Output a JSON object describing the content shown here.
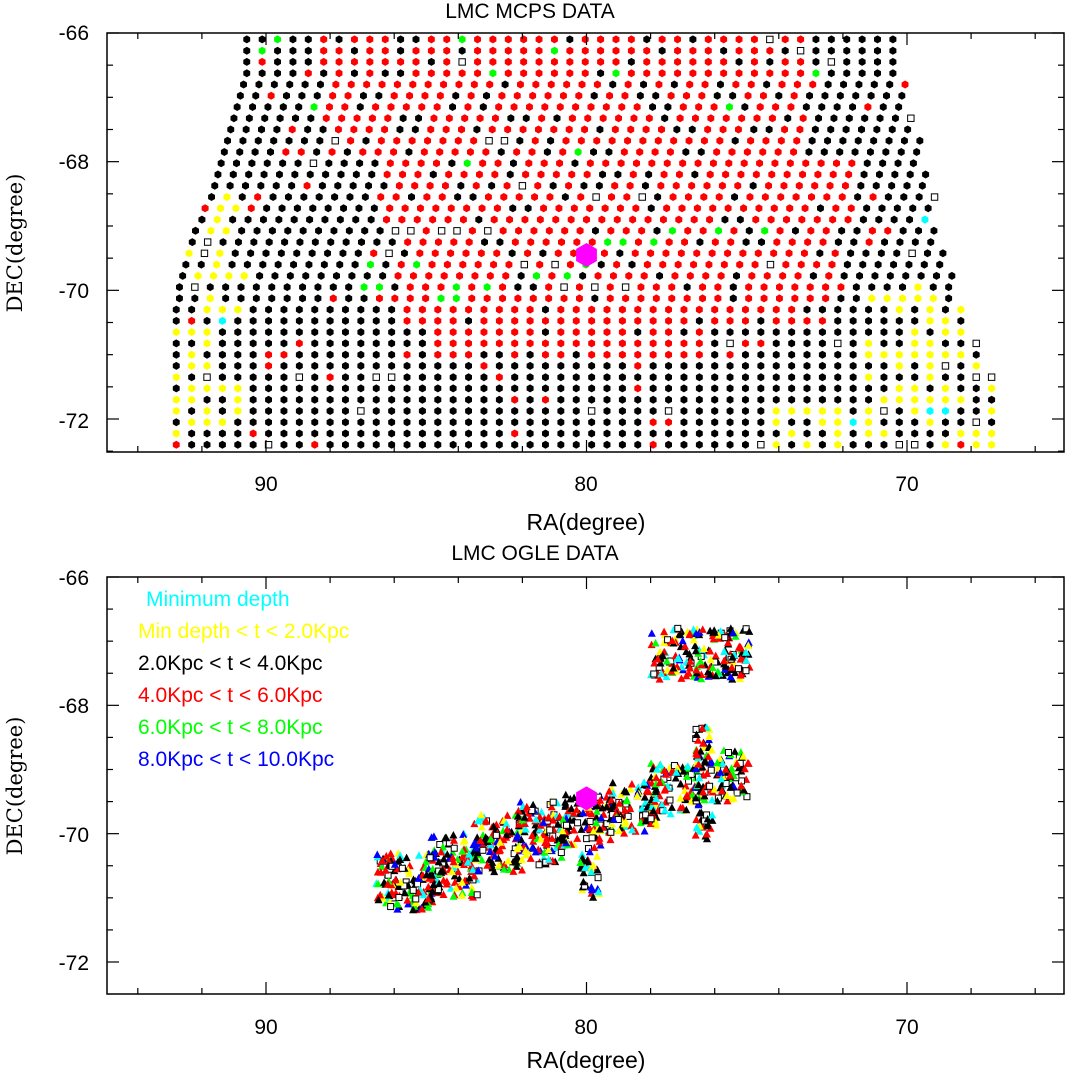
{
  "chart_data": [
    {
      "type": "scatter",
      "title": "LMC MCPS DATA",
      "xlabel": "RA(degree)",
      "ylabel": "DEC(degree)",
      "xlim": [
        95,
        65
      ],
      "ylim": [
        -72.5,
        -66
      ],
      "xticks": [
        "90",
        "80",
        "70"
      ],
      "yticks": [
        "-66",
        "-68",
        "-70",
        "-72"
      ],
      "grid": false,
      "dec_rows_from": -66.1,
      "dec_row_step": -0.175,
      "ra_step": 0.48,
      "rows": [
        {
          "ra_max": 90.6,
          "ra_min": 70.3
        },
        {
          "ra_max": 90.6,
          "ra_min": 70.3
        },
        {
          "ra_max": 90.6,
          "ra_min": 70.1
        },
        {
          "ra_max": 90.6,
          "ra_min": 70.1
        },
        {
          "ra_max": 90.7,
          "ra_min": 70.0
        },
        {
          "ra_max": 90.8,
          "ra_min": 69.9
        },
        {
          "ra_max": 90.9,
          "ra_min": 69.9
        },
        {
          "ra_max": 91.0,
          "ra_min": 69.8
        },
        {
          "ra_max": 91.1,
          "ra_min": 69.7
        },
        {
          "ra_max": 91.2,
          "ra_min": 69.6
        },
        {
          "ra_max": 91.3,
          "ra_min": 69.5
        },
        {
          "ra_max": 91.4,
          "ra_min": 69.4
        },
        {
          "ra_max": 91.5,
          "ra_min": 69.3
        },
        {
          "ra_max": 91.6,
          "ra_min": 69.2
        },
        {
          "ra_max": 91.7,
          "ra_min": 69.1
        },
        {
          "ra_max": 91.9,
          "ra_min": 69.0
        },
        {
          "ra_max": 92.0,
          "ra_min": 69.0
        },
        {
          "ra_max": 92.2,
          "ra_min": 68.9
        },
        {
          "ra_max": 92.3,
          "ra_min": 68.8
        },
        {
          "ra_max": 92.4,
          "ra_min": 68.7
        },
        {
          "ra_max": 92.5,
          "ra_min": 68.6
        },
        {
          "ra_max": 92.6,
          "ra_min": 68.5
        },
        {
          "ra_max": 92.7,
          "ra_min": 68.4
        },
        {
          "ra_max": 92.7,
          "ra_min": 68.3
        },
        {
          "ra_max": 92.8,
          "ra_min": 68.2
        },
        {
          "ra_max": 92.8,
          "ra_min": 68.0
        },
        {
          "ra_max": 92.8,
          "ra_min": 67.9
        },
        {
          "ra_max": 92.8,
          "ra_min": 67.8
        },
        {
          "ra_max": 92.8,
          "ra_min": 67.6
        },
        {
          "ra_max": 92.8,
          "ra_min": 67.5
        },
        {
          "ra_max": 92.8,
          "ra_min": 67.3
        },
        {
          "ra_max": 92.8,
          "ra_min": 67.2
        },
        {
          "ra_max": 92.8,
          "ra_min": 67.1
        },
        {
          "ra_max": 92.8,
          "ra_min": 67.0
        },
        {
          "ra_max": 92.8,
          "ra_min": 67.0
        },
        {
          "ra_max": 92.8,
          "ra_min": 67.0
        },
        {
          "ra_max": 92.8,
          "ra_min": 67.0
        }
      ],
      "regions": [
        {
          "depth_class": "red",
          "ra": [
            88.2,
            73.2
          ],
          "dec": [
            -66.0,
            -67.9
          ]
        },
        {
          "depth_class": "red",
          "ra": [
            86.5,
            71.7
          ],
          "dec": [
            -67.9,
            -69.0
          ]
        },
        {
          "depth_class": "red",
          "ra": [
            86.0,
            72.2
          ],
          "dec": [
            -69.0,
            -70.5
          ]
        },
        {
          "depth_class": "red",
          "ra": [
            85.0,
            76.0
          ],
          "dec": [
            -70.5,
            -71.0
          ]
        },
        {
          "depth_class": "yellow",
          "ra": [
            92.8,
            90.6
          ],
          "dec": [
            -68.4,
            -72.5
          ]
        },
        {
          "depth_class": "yellow",
          "ra": [
            71.3,
            67.0
          ],
          "dec": [
            -69.9,
            -72.5
          ]
        },
        {
          "depth_class": "yellow",
          "ra": [
            74.5,
            67.0
          ],
          "dec": [
            -71.8,
            -72.5
          ]
        }
      ],
      "special_points": [
        {
          "ra": 89.5,
          "dec": -66.1,
          "depth_class": "green"
        },
        {
          "ra": 90.0,
          "dec": -66.3,
          "depth_class": "green"
        },
        {
          "ra": 84.0,
          "dec": -66.1,
          "depth_class": "green"
        },
        {
          "ra": 83.0,
          "dec": -66.6,
          "depth_class": "green"
        },
        {
          "ra": 81.0,
          "dec": -66.3,
          "depth_class": "green"
        },
        {
          "ra": 79.2,
          "dec": -66.6,
          "depth_class": "green"
        },
        {
          "ra": 75.5,
          "dec": -67.2,
          "depth_class": "green"
        },
        {
          "ra": 73.0,
          "dec": -66.6,
          "depth_class": "green"
        },
        {
          "ra": 88.7,
          "dec": -67.2,
          "depth_class": "green"
        },
        {
          "ra": 80.2,
          "dec": -67.9,
          "depth_class": "green"
        },
        {
          "ra": 83.9,
          "dec": -68.1,
          "depth_class": "green"
        },
        {
          "ra": 79.5,
          "dec": -69.3,
          "depth_class": "green"
        },
        {
          "ra": 78.8,
          "dec": -69.3,
          "depth_class": "green"
        },
        {
          "ra": 78.1,
          "dec": -69.3,
          "depth_class": "green"
        },
        {
          "ra": 77.2,
          "dec": -69.1,
          "depth_class": "green"
        },
        {
          "ra": 75.8,
          "dec": -69.1,
          "depth_class": "green"
        },
        {
          "ra": 74.5,
          "dec": -69.1,
          "depth_class": "green"
        },
        {
          "ra": 80.8,
          "dec": -69.7,
          "depth_class": "green"
        },
        {
          "ra": 81.5,
          "dec": -69.8,
          "depth_class": "green"
        },
        {
          "ra": 83.0,
          "dec": -69.9,
          "depth_class": "green"
        },
        {
          "ra": 84.2,
          "dec": -70.0,
          "depth_class": "green"
        },
        {
          "ra": 84.5,
          "dec": -70.1,
          "depth_class": "green"
        },
        {
          "ra": 86.7,
          "dec": -69.6,
          "depth_class": "green"
        },
        {
          "ra": 86.7,
          "dec": -69.9,
          "depth_class": "green"
        },
        {
          "ra": 85.2,
          "dec": -69.6,
          "depth_class": "green"
        },
        {
          "ra": 84.3,
          "dec": -70.1,
          "depth_class": "green"
        },
        {
          "ra": 79.8,
          "dec": -69.6,
          "depth_class": "green"
        },
        {
          "ra": 69.2,
          "dec": -68.9,
          "depth_class": "cyan"
        },
        {
          "ra": 91.3,
          "dec": -70.4,
          "depth_class": "cyan"
        },
        {
          "ra": 69.1,
          "dec": -71.9,
          "depth_class": "cyan"
        },
        {
          "ra": 68.7,
          "dec": -71.9,
          "depth_class": "cyan"
        },
        {
          "ra": 71.9,
          "dec": -72.1,
          "depth_class": "cyan"
        },
        {
          "ra": 70.3,
          "dec": -72.4,
          "depth_class": "cyan"
        },
        {
          "ra": 68.5,
          "dec": -72.4,
          "depth_class": "red"
        },
        {
          "ra": 92.8,
          "dec": -72.4,
          "depth_class": "red"
        },
        {
          "ra": 92.4,
          "dec": -70.4,
          "depth_class": "red"
        },
        {
          "ra": 91.9,
          "dec": -68.8,
          "depth_class": "red"
        },
        {
          "ra": 89.8,
          "dec": -71.1,
          "depth_class": "red"
        },
        {
          "ra": 88.3,
          "dec": -72.4,
          "depth_class": "red"
        },
        {
          "ra": 68.9,
          "dec": -71.1,
          "depth_class": "red"
        },
        {
          "ra": 74.8,
          "dec": -70.9,
          "depth_class": "red"
        },
        {
          "ra": 77.9,
          "dec": -72.1,
          "depth_class": "red"
        }
      ],
      "open_squares": [
        {
          "ra": 84.0,
          "dec": -66.4
        },
        {
          "ra": 74.2,
          "dec": -66.1
        },
        {
          "ra": 73.2,
          "dec": -66.3
        },
        {
          "ra": 72.4,
          "dec": -66.4
        },
        {
          "ra": 87.8,
          "dec": -67.6
        },
        {
          "ra": 82.8,
          "dec": -67.6
        },
        {
          "ra": 70.0,
          "dec": -67.4
        },
        {
          "ra": 88.7,
          "dec": -68.1
        },
        {
          "ra": 82.1,
          "dec": -68.4
        },
        {
          "ra": 79.8,
          "dec": -68.6
        },
        {
          "ra": 78.1,
          "dec": -68.6
        },
        {
          "ra": 68.9,
          "dec": -68.4
        },
        {
          "ra": 68.9,
          "dec": -68.6
        },
        {
          "ra": 92.0,
          "dec": -69.2
        },
        {
          "ra": 92.0,
          "dec": -69.4
        },
        {
          "ra": 86.0,
          "dec": -69.1
        },
        {
          "ra": 85.3,
          "dec": -69.1
        },
        {
          "ra": 84.5,
          "dec": -69.1
        },
        {
          "ra": 83.9,
          "dec": -69.1
        },
        {
          "ra": 83.0,
          "dec": -69.1
        },
        {
          "ra": 86.2,
          "dec": -69.4
        },
        {
          "ra": 82.1,
          "dec": -69.6
        },
        {
          "ra": 81.2,
          "dec": -69.6
        },
        {
          "ra": 80.7,
          "dec": -69.9
        },
        {
          "ra": 79.9,
          "dec": -69.9
        },
        {
          "ra": 78.9,
          "dec": -69.9
        },
        {
          "ra": 74.4,
          "dec": -69.6
        },
        {
          "ra": 69.8,
          "dec": -69.4
        },
        {
          "ra": 93.1,
          "dec": -69.9
        },
        {
          "ra": 93.2,
          "dec": -70.1
        },
        {
          "ra": 92.2,
          "dec": -69.9
        },
        {
          "ra": 75.4,
          "dec": -70.9
        },
        {
          "ra": 72.3,
          "dec": -70.9
        },
        {
          "ra": 69.0,
          "dec": -71.1
        },
        {
          "ra": 68.0,
          "dec": -70.6
        },
        {
          "ra": 67.8,
          "dec": -70.9
        },
        {
          "ra": 68.0,
          "dec": -71.4
        },
        {
          "ra": 91.7,
          "dec": -71.4
        },
        {
          "ra": 89.0,
          "dec": -71.4
        },
        {
          "ra": 86.6,
          "dec": -71.4
        },
        {
          "ra": 86.0,
          "dec": -71.4
        },
        {
          "ra": 79.9,
          "dec": -71.9
        },
        {
          "ra": 77.3,
          "dec": -71.9
        },
        {
          "ra": 70.9,
          "dec": -71.9
        },
        {
          "ra": 67.4,
          "dec": -71.4
        },
        {
          "ra": 67.8,
          "dec": -72.1
        },
        {
          "ra": 74.5,
          "dec": -72.4
        },
        {
          "ra": 70.0,
          "dec": -72.4
        },
        {
          "ra": 89.8,
          "dec": -72.4
        },
        {
          "ra": 67.1,
          "dec": -72.1
        },
        {
          "ra": 87.0,
          "dec": -71.9
        }
      ],
      "center_marker": {
        "ra": 80.0,
        "dec": -69.45,
        "color": "#ff00ff"
      },
      "colors": {
        "black": "#000000",
        "red": "#ff0000",
        "yellow": "#ffff00",
        "green": "#00ff00",
        "cyan": "#00ffff",
        "blue": "#0000ff"
      }
    },
    {
      "type": "scatter",
      "title": "LMC OGLE DATA",
      "xlabel": "RA(degree)",
      "ylabel": "DEC(degree)",
      "xlim": [
        95,
        65
      ],
      "ylim": [
        -72.5,
        -66
      ],
      "xticks": [
        "90",
        "80",
        "70"
      ],
      "yticks": [
        "-66",
        "-68",
        "-70",
        "-72"
      ],
      "grid": false,
      "legend": {
        "placement": "top-left",
        "entries": [
          {
            "label": "Minimum depth",
            "color": "#00ffff"
          },
          {
            "label": "Min depth < t < 2.0Kpc",
            "color": "#ffff00"
          },
          {
            "label": "2.0Kpc < t < 4.0Kpc",
            "color": "#000000"
          },
          {
            "label": "4.0Kpc < t < 6.0Kpc",
            "color": "#ff0000"
          },
          {
            "label": "6.0Kpc < t < 8.0Kpc",
            "color": "#00ff00"
          },
          {
            "label": "8.0Kpc < t < 10.0Kpc",
            "color": "#0000ff"
          }
        ]
      },
      "fields": [
        {
          "ra": [
            86.6,
            84.8
          ],
          "dec": [
            -70.3,
            -71.2
          ]
        },
        {
          "ra": [
            85.0,
            83.4
          ],
          "dec": [
            -70.0,
            -71.0
          ]
        },
        {
          "ra": [
            83.6,
            82.0
          ],
          "dec": [
            -69.7,
            -70.6
          ]
        },
        {
          "ra": [
            82.2,
            80.6
          ],
          "dec": [
            -69.5,
            -70.5
          ]
        },
        {
          "ra": [
            80.8,
            79.2
          ],
          "dec": [
            -69.4,
            -70.2
          ]
        },
        {
          "ra": [
            79.4,
            77.8
          ],
          "dec": [
            -69.2,
            -70.0
          ]
        },
        {
          "ra": [
            78.0,
            76.4
          ],
          "dec": [
            -68.9,
            -69.7
          ]
        },
        {
          "ra": [
            76.6,
            74.9
          ],
          "dec": [
            -68.7,
            -69.5
          ]
        },
        {
          "ra": [
            80.2,
            79.6
          ],
          "dec": [
            -70.2,
            -71.0
          ]
        },
        {
          "ra": [
            76.6,
            76.0
          ],
          "dec": [
            -68.3,
            -68.9
          ]
        },
        {
          "ra": [
            76.6,
            76.0
          ],
          "dec": [
            -69.7,
            -70.1
          ]
        },
        {
          "ra": [
            78.0,
            74.9
          ],
          "dec": [
            -66.8,
            -67.6
          ]
        }
      ],
      "center_marker": {
        "ra": 80.0,
        "dec": -69.45,
        "color": "#ff00ff"
      }
    }
  ]
}
